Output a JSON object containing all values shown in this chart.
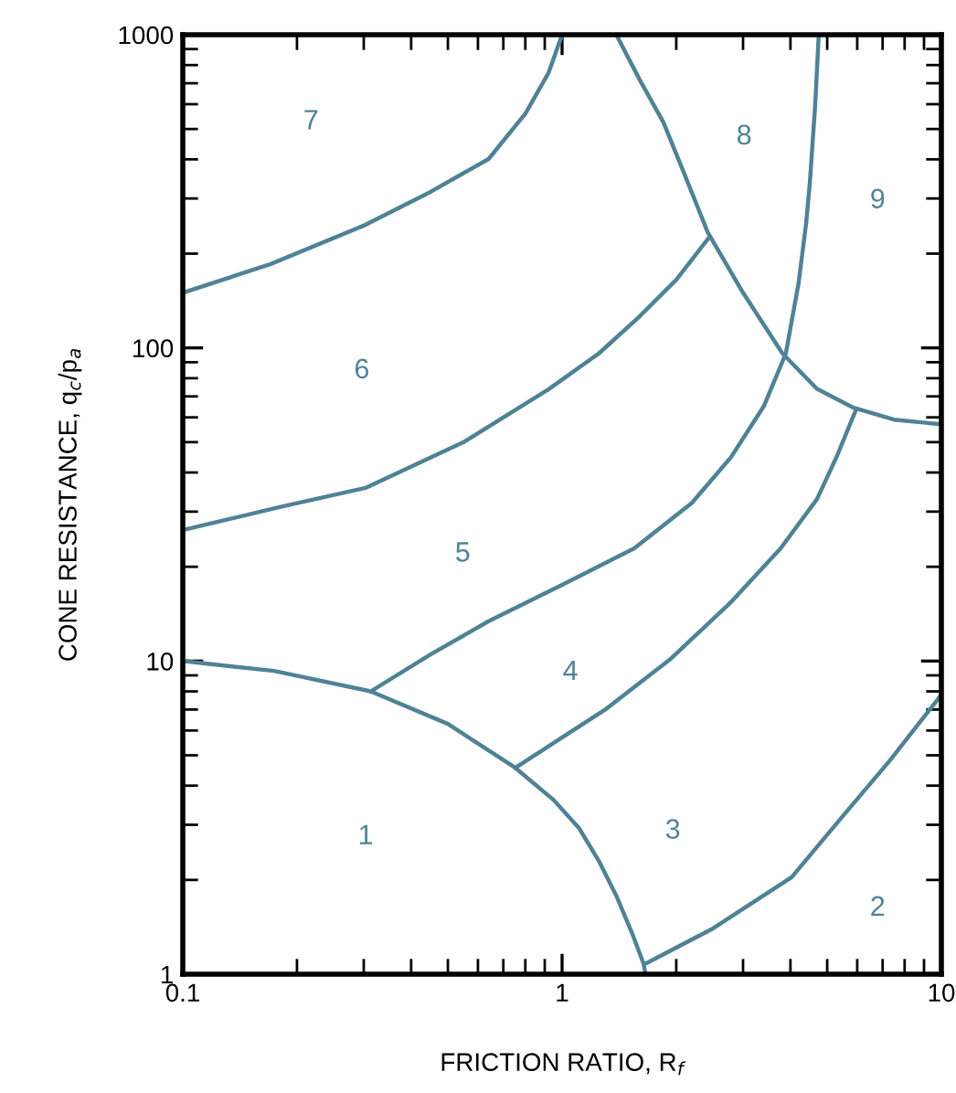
{
  "chart_data": {
    "type": "line",
    "xlabel": "FRICTION RATIO, R$_{f}$",
    "ylabel": "CONE RESISTANCE, q$_{c}$/p$_{a}$",
    "log": "xy",
    "xlim": [
      0.1,
      10
    ],
    "ylim": [
      1,
      1000
    ],
    "xticks": [
      0.1,
      1,
      10
    ],
    "yticks": [
      1,
      10,
      100,
      1000
    ],
    "grid": false,
    "legend": false,
    "marker": "none",
    "line_style": "solid",
    "series": [
      {
        "color": "#4f8296",
        "x": [
          0.1,
          0.17,
          0.303,
          0.45,
          0.64,
          0.8,
          0.92,
          1.0
        ],
        "values": [
          150,
          185,
          247,
          315,
          401,
          560,
          753,
          1000
        ]
      },
      {
        "color": "#4f8296",
        "x": [
          0.1,
          0.18,
          0.303,
          0.55,
          0.92,
          1.25,
          1.6,
          2.0,
          2.44
        ],
        "values": [
          26.2,
          31,
          35.7,
          50,
          73.7,
          96,
          126,
          165,
          225
        ]
      },
      {
        "color": "#4f8296",
        "x": [
          0.313,
          0.45,
          0.64,
          1.0,
          1.55,
          2.2,
          2.79,
          3.4,
          3.89,
          4.2,
          4.4,
          4.5,
          4.65,
          4.75
        ],
        "values": [
          8.0,
          10.5,
          13.4,
          17.5,
          22.9,
          32,
          44.8,
          65,
          96,
          160,
          250,
          336,
          600,
          1000
        ]
      },
      {
        "color": "#4f8296",
        "x": [
          0.753,
          1.3,
          1.94,
          2.8,
          3.77,
          4.7,
          5.3,
          5.93
        ],
        "values": [
          4.56,
          7.0,
          10.2,
          15.5,
          22.9,
          32.9,
          45,
          62.7
        ]
      },
      {
        "color": "#4f8296",
        "x": [
          0.1,
          0.174,
          0.313,
          0.5,
          0.753,
          0.95,
          1.11,
          1.25,
          1.39,
          1.53,
          1.64,
          1.66
        ],
        "values": [
          10,
          9.3,
          8.0,
          6.3,
          4.56,
          3.6,
          2.92,
          2.3,
          1.78,
          1.35,
          1.08,
          1
        ]
      },
      {
        "color": "#4f8296",
        "x": [
          1.66,
          2.5,
          4.03,
          5.5,
          7.3,
          9.15,
          10
        ],
        "values": [
          1.08,
          1.4,
          2.04,
          3.2,
          4.8,
          6.8,
          7.8
        ]
      },
      {
        "color": "#4f8296",
        "x": [
          1.39,
          1.6,
          1.85,
          2.1,
          2.42,
          3.0,
          3.81,
          4.7,
          5.87,
          7.5,
          10
        ],
        "values": [
          1000,
          720,
          525,
          360,
          234,
          150,
          96,
          74,
          64.4,
          59,
          57
        ]
      }
    ],
    "annotations": [
      "7",
      "8",
      "9",
      "6",
      "5",
      "4",
      "1",
      "3",
      "2"
    ]
  }
}
